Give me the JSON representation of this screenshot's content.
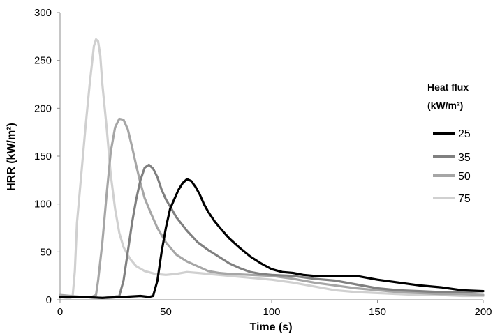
{
  "chart_data": {
    "type": "line",
    "xlabel": "Time (s)",
    "ylabel": "HRR (kW/m²)",
    "xlim": [
      0,
      200
    ],
    "ylim": [
      0,
      300
    ],
    "x_ticks": [
      0,
      50,
      100,
      150,
      200
    ],
    "y_ticks": [
      0,
      50,
      100,
      150,
      200,
      250,
      300
    ],
    "grid": false,
    "legend_title": [
      "Heat flux",
      "(kW/m²)"
    ],
    "legend_position": "right",
    "series": [
      {
        "name": "25",
        "color": "#000000",
        "points": [
          [
            0,
            3
          ],
          [
            10,
            3
          ],
          [
            20,
            2
          ],
          [
            30,
            3
          ],
          [
            38,
            4
          ],
          [
            42,
            3
          ],
          [
            44,
            4
          ],
          [
            46,
            20
          ],
          [
            48,
            50
          ],
          [
            50,
            75
          ],
          [
            52,
            95
          ],
          [
            54,
            105
          ],
          [
            56,
            115
          ],
          [
            58,
            122
          ],
          [
            60,
            126
          ],
          [
            62,
            124
          ],
          [
            64,
            118
          ],
          [
            66,
            110
          ],
          [
            68,
            100
          ],
          [
            70,
            92
          ],
          [
            73,
            82
          ],
          [
            76,
            74
          ],
          [
            80,
            64
          ],
          [
            85,
            54
          ],
          [
            90,
            45
          ],
          [
            95,
            38
          ],
          [
            100,
            32
          ],
          [
            105,
            29
          ],
          [
            110,
            28
          ],
          [
            115,
            26
          ],
          [
            120,
            25
          ],
          [
            130,
            25
          ],
          [
            140,
            25
          ],
          [
            145,
            23
          ],
          [
            150,
            21
          ],
          [
            160,
            18
          ],
          [
            170,
            15
          ],
          [
            180,
            13
          ],
          [
            190,
            10
          ],
          [
            200,
            9
          ]
        ]
      },
      {
        "name": "35",
        "color": "#808080",
        "points": [
          [
            0,
            3
          ],
          [
            10,
            3
          ],
          [
            20,
            2
          ],
          [
            25,
            3
          ],
          [
            28,
            4
          ],
          [
            30,
            20
          ],
          [
            32,
            50
          ],
          [
            34,
            80
          ],
          [
            36,
            105
          ],
          [
            38,
            125
          ],
          [
            40,
            138
          ],
          [
            42,
            141
          ],
          [
            44,
            137
          ],
          [
            46,
            128
          ],
          [
            48,
            115
          ],
          [
            50,
            105
          ],
          [
            55,
            86
          ],
          [
            60,
            72
          ],
          [
            65,
            60
          ],
          [
            70,
            52
          ],
          [
            75,
            45
          ],
          [
            80,
            38
          ],
          [
            85,
            33
          ],
          [
            90,
            29
          ],
          [
            95,
            27
          ],
          [
            100,
            26
          ],
          [
            110,
            25
          ],
          [
            120,
            22
          ],
          [
            130,
            20
          ],
          [
            140,
            16
          ],
          [
            150,
            12
          ],
          [
            160,
            10
          ],
          [
            170,
            9
          ],
          [
            180,
            8
          ],
          [
            190,
            8
          ],
          [
            200,
            9
          ]
        ]
      },
      {
        "name": "50",
        "color": "#a6a6a6",
        "points": [
          [
            0,
            5
          ],
          [
            5,
            4
          ],
          [
            10,
            3
          ],
          [
            15,
            3
          ],
          [
            17,
            5
          ],
          [
            18,
            20
          ],
          [
            20,
            60
          ],
          [
            22,
            110
          ],
          [
            24,
            155
          ],
          [
            26,
            180
          ],
          [
            28,
            189
          ],
          [
            30,
            188
          ],
          [
            32,
            178
          ],
          [
            34,
            160
          ],
          [
            36,
            140
          ],
          [
            38,
            122
          ],
          [
            40,
            106
          ],
          [
            43,
            90
          ],
          [
            46,
            75
          ],
          [
            50,
            60
          ],
          [
            55,
            47
          ],
          [
            60,
            40
          ],
          [
            65,
            35
          ],
          [
            70,
            30
          ],
          [
            75,
            28
          ],
          [
            80,
            27
          ],
          [
            90,
            26
          ],
          [
            100,
            25
          ],
          [
            110,
            22
          ],
          [
            120,
            18
          ],
          [
            130,
            15
          ],
          [
            140,
            12
          ],
          [
            150,
            10
          ],
          [
            160,
            8
          ],
          [
            170,
            7
          ],
          [
            180,
            6
          ],
          [
            190,
            6
          ],
          [
            200,
            5
          ]
        ]
      },
      {
        "name": "75",
        "color": "#d0d0d0",
        "points": [
          [
            0,
            3
          ],
          [
            3,
            2
          ],
          [
            5,
            2
          ],
          [
            6,
            5
          ],
          [
            7,
            30
          ],
          [
            8,
            80
          ],
          [
            10,
            130
          ],
          [
            12,
            180
          ],
          [
            14,
            225
          ],
          [
            16,
            265
          ],
          [
            17,
            272
          ],
          [
            18,
            270
          ],
          [
            19,
            255
          ],
          [
            20,
            225
          ],
          [
            22,
            180
          ],
          [
            24,
            130
          ],
          [
            26,
            95
          ],
          [
            28,
            70
          ],
          [
            30,
            55
          ],
          [
            33,
            43
          ],
          [
            36,
            35
          ],
          [
            40,
            30
          ],
          [
            45,
            27
          ],
          [
            50,
            26
          ],
          [
            55,
            27
          ],
          [
            60,
            29
          ],
          [
            65,
            28
          ],
          [
            70,
            27
          ],
          [
            80,
            25
          ],
          [
            90,
            23
          ],
          [
            100,
            21
          ],
          [
            110,
            18
          ],
          [
            120,
            14
          ],
          [
            130,
            10
          ],
          [
            140,
            8
          ],
          [
            150,
            7
          ],
          [
            160,
            6
          ],
          [
            170,
            5
          ],
          [
            180,
            5
          ],
          [
            190,
            4
          ],
          [
            200,
            4
          ]
        ]
      }
    ]
  }
}
